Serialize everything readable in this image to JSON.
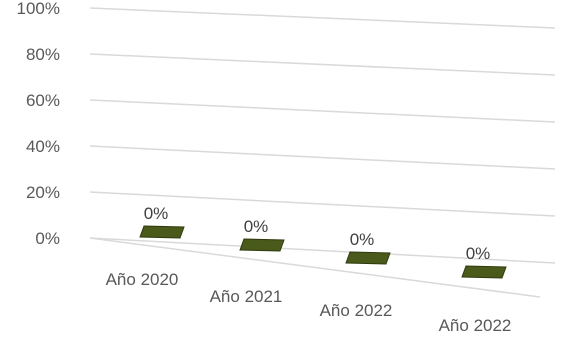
{
  "chart_data": {
    "type": "bar",
    "title": "",
    "xlabel": "",
    "ylabel": "",
    "categories": [
      "Año 2020",
      "Año 2021",
      "Año 2022",
      "Año 2022"
    ],
    "series": [
      {
        "values": [
          0,
          0,
          0,
          0
        ],
        "data_labels": [
          "0%",
          "0%",
          "0%",
          "0%"
        ]
      }
    ],
    "y_tick_labels": [
      "0%",
      "20%",
      "40%",
      "60%",
      "80%",
      "100%"
    ],
    "ylim": [
      0,
      100
    ],
    "y_unit": "percent",
    "grid": true,
    "legend": "none",
    "style": "3d-perspective",
    "colors": {
      "bar": "#4a5a1a",
      "bar_edge": "#2e3a0e",
      "grid": "#d9d9d9",
      "text": "#595959"
    }
  }
}
